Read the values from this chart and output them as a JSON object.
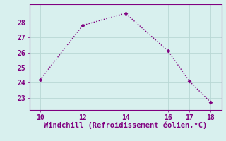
{
  "x": [
    10,
    12,
    14,
    16,
    17,
    18
  ],
  "y": [
    24.2,
    27.8,
    28.6,
    26.1,
    24.1,
    22.7
  ],
  "line_color": "#800080",
  "marker": "D",
  "marker_size": 2.5,
  "line_width": 1.0,
  "line_style": "dotted",
  "xlabel": "Windchill (Refroidissement éolien,°C)",
  "xlabel_fontsize": 7.5,
  "xlabel_color": "#800080",
  "tick_color": "#800080",
  "tick_labelsize": 7,
  "xlim": [
    9.5,
    18.5
  ],
  "ylim": [
    22.2,
    29.2
  ],
  "yticks": [
    23,
    24,
    25,
    26,
    27,
    28
  ],
  "xticks": [
    10,
    12,
    14,
    16,
    17,
    18
  ],
  "background_color": "#d8f0ee",
  "grid_color": "#b8d8d4",
  "grid_linewidth": 0.6,
  "spine_color": "#800080",
  "spine_linewidth": 0.8
}
